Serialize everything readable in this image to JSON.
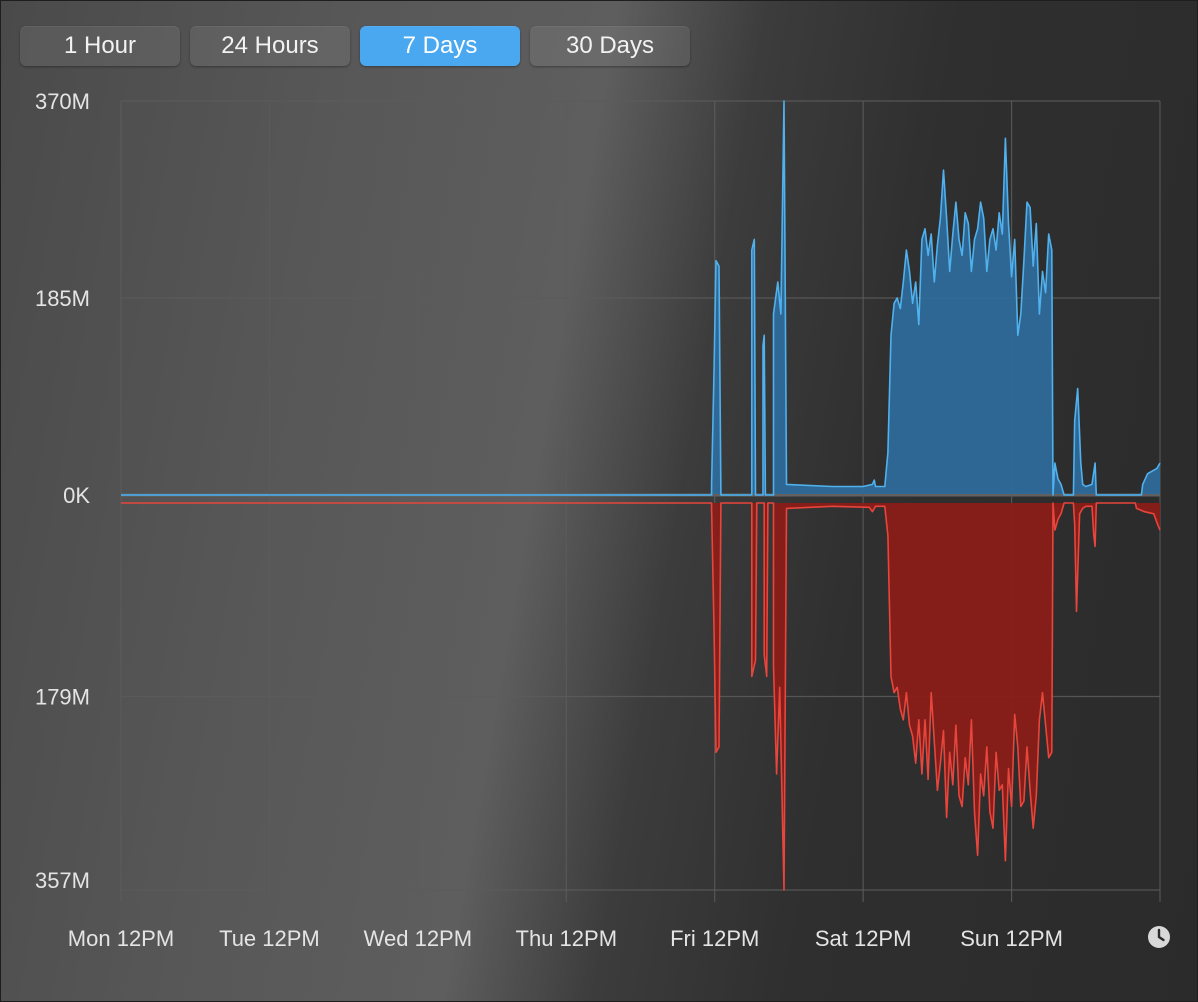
{
  "tabs": [
    {
      "label": "1 Hour",
      "active": false
    },
    {
      "label": "24 Hours",
      "active": false
    },
    {
      "label": "7 Days",
      "active": true
    },
    {
      "label": "30 Days",
      "active": false
    }
  ],
  "colors": {
    "upload": "#4fb1ee",
    "upload_fill": "#2e6a9a",
    "download": "#e8453c",
    "download_fill": "#8a1e18",
    "accent": "#4aa8f0"
  },
  "icons": {
    "time": "clock-icon"
  },
  "chart_data": {
    "type": "area",
    "xlabels": [
      "Mon 12PM",
      "Tue 12PM",
      "Wed 12PM",
      "Thu 12PM",
      "Fri 12PM",
      "Sat 12PM",
      "Sun 12PM"
    ],
    "x_range_hours": [
      0,
      168
    ],
    "upper_axis": {
      "ticks": [
        "370M",
        "185M",
        "0K"
      ],
      "max": 370
    },
    "lower_axis": {
      "ticks": [
        "179M",
        "357M"
      ],
      "max": 357
    },
    "grid": true,
    "series": [
      {
        "role": "upper",
        "points": [
          [
            0,
            0
          ],
          [
            95.5,
            0
          ],
          [
            95.5,
            10
          ],
          [
            95.9,
            120
          ],
          [
            96.2,
            220
          ],
          [
            96.7,
            215
          ],
          [
            97,
            0
          ],
          [
            102,
            0
          ],
          [
            102,
            230
          ],
          [
            102.4,
            240
          ],
          [
            102.6,
            0
          ],
          [
            103.8,
            0
          ],
          [
            103.8,
            140
          ],
          [
            104,
            150
          ],
          [
            104.2,
            0
          ],
          [
            105.5,
            0
          ],
          [
            105.5,
            170
          ],
          [
            106.2,
            200
          ],
          [
            106.7,
            170
          ],
          [
            107.2,
            370
          ],
          [
            107.6,
            10
          ],
          [
            115,
            8
          ],
          [
            120,
            8
          ],
          [
            121.5,
            10
          ],
          [
            121.8,
            14
          ],
          [
            122,
            8
          ],
          [
            123.5,
            8
          ],
          [
            124,
            40
          ],
          [
            124.5,
            150
          ],
          [
            125,
            180
          ],
          [
            125.5,
            185
          ],
          [
            126,
            175
          ],
          [
            126.5,
            200
          ],
          [
            127,
            230
          ],
          [
            127.5,
            210
          ],
          [
            128,
            180
          ],
          [
            128.5,
            200
          ],
          [
            129,
            160
          ],
          [
            129.5,
            240
          ],
          [
            130,
            250
          ],
          [
            130.5,
            225
          ],
          [
            131,
            245
          ],
          [
            131.5,
            200
          ],
          [
            132,
            235
          ],
          [
            132.5,
            260
          ],
          [
            133,
            305
          ],
          [
            133.5,
            260
          ],
          [
            134,
            210
          ],
          [
            134.5,
            245
          ],
          [
            135,
            275
          ],
          [
            135.5,
            240
          ],
          [
            136,
            225
          ],
          [
            136.5,
            265
          ],
          [
            137,
            255
          ],
          [
            137.5,
            210
          ],
          [
            138,
            240
          ],
          [
            138.5,
            250
          ],
          [
            139,
            275
          ],
          [
            139.5,
            260
          ],
          [
            140,
            210
          ],
          [
            140.5,
            240
          ],
          [
            141,
            250
          ],
          [
            141.5,
            230
          ],
          [
            142,
            265
          ],
          [
            142.5,
            245
          ],
          [
            143,
            335
          ],
          [
            143.5,
            255
          ],
          [
            144,
            205
          ],
          [
            144.5,
            240
          ],
          [
            145,
            150
          ],
          [
            145.5,
            170
          ],
          [
            146,
            220
          ],
          [
            146.5,
            275
          ],
          [
            147,
            270
          ],
          [
            147.5,
            215
          ],
          [
            148,
            255
          ],
          [
            148.5,
            170
          ],
          [
            149,
            210
          ],
          [
            149.5,
            190
          ],
          [
            150,
            245
          ],
          [
            150.5,
            230
          ],
          [
            150.7,
            0
          ],
          [
            151,
            30
          ],
          [
            151.5,
            15
          ],
          [
            152,
            10
          ],
          [
            152.5,
            0
          ],
          [
            154,
            0
          ],
          [
            154.2,
            70
          ],
          [
            154.7,
            100
          ],
          [
            155.2,
            30
          ],
          [
            155.5,
            10
          ],
          [
            156,
            8
          ],
          [
            157,
            10
          ],
          [
            157.5,
            30
          ],
          [
            157.7,
            0
          ],
          [
            165,
            0
          ],
          [
            165.2,
            10
          ],
          [
            166,
            20
          ],
          [
            167.5,
            25
          ],
          [
            168,
            30
          ]
        ]
      },
      {
        "role": "lower",
        "points": [
          [
            0,
            0
          ],
          [
            95.5,
            0
          ],
          [
            95.5,
            5
          ],
          [
            95.9,
            120
          ],
          [
            96.2,
            230
          ],
          [
            96.7,
            225
          ],
          [
            97,
            0
          ],
          [
            102,
            0
          ],
          [
            102,
            160
          ],
          [
            102.6,
            145
          ],
          [
            102.8,
            0
          ],
          [
            104,
            0
          ],
          [
            104,
            140
          ],
          [
            104.4,
            160
          ],
          [
            104.6,
            0
          ],
          [
            105.5,
            0
          ],
          [
            105.5,
            150
          ],
          [
            106,
            250
          ],
          [
            106.5,
            170
          ],
          [
            107.2,
            357
          ],
          [
            107.6,
            5
          ],
          [
            115,
            3
          ],
          [
            121,
            4
          ],
          [
            121.5,
            8
          ],
          [
            122,
            3
          ],
          [
            123.5,
            3
          ],
          [
            124,
            30
          ],
          [
            124.5,
            160
          ],
          [
            125,
            175
          ],
          [
            125.5,
            170
          ],
          [
            126,
            190
          ],
          [
            126.5,
            200
          ],
          [
            127,
            175
          ],
          [
            127.5,
            205
          ],
          [
            128,
            215
          ],
          [
            128.5,
            240
          ],
          [
            129,
            200
          ],
          [
            129.5,
            250
          ],
          [
            130,
            200
          ],
          [
            130.5,
            255
          ],
          [
            131,
            175
          ],
          [
            131.5,
            220
          ],
          [
            132,
            265
          ],
          [
            132.5,
            240
          ],
          [
            133,
            210
          ],
          [
            133.5,
            290
          ],
          [
            134,
            230
          ],
          [
            134.5,
            260
          ],
          [
            135,
            205
          ],
          [
            135.5,
            270
          ],
          [
            136,
            280
          ],
          [
            136.5,
            235
          ],
          [
            137,
            260
          ],
          [
            137.5,
            200
          ],
          [
            138,
            285
          ],
          [
            138.5,
            325
          ],
          [
            139,
            250
          ],
          [
            139.5,
            270
          ],
          [
            140,
            225
          ],
          [
            140.5,
            285
          ],
          [
            141,
            300
          ],
          [
            141.5,
            230
          ],
          [
            142,
            265
          ],
          [
            142.5,
            260
          ],
          [
            143,
            330
          ],
          [
            143.5,
            245
          ],
          [
            144,
            280
          ],
          [
            144.5,
            195
          ],
          [
            145,
            225
          ],
          [
            145.5,
            280
          ],
          [
            146,
            275
          ],
          [
            146.5,
            225
          ],
          [
            147,
            265
          ],
          [
            147.5,
            300
          ],
          [
            148,
            270
          ],
          [
            148.5,
            200
          ],
          [
            149,
            175
          ],
          [
            149.5,
            205
          ],
          [
            150,
            235
          ],
          [
            150.5,
            230
          ],
          [
            150.7,
            0
          ],
          [
            151,
            25
          ],
          [
            151.5,
            15
          ],
          [
            152,
            10
          ],
          [
            152.5,
            0
          ],
          [
            154,
            0
          ],
          [
            154.2,
            20
          ],
          [
            154.5,
            100
          ],
          [
            155,
            10
          ],
          [
            155.5,
            5
          ],
          [
            156,
            3
          ],
          [
            157,
            3
          ],
          [
            157.3,
            30
          ],
          [
            157.5,
            40
          ],
          [
            157.7,
            0
          ],
          [
            164,
            0
          ],
          [
            164.2,
            5
          ],
          [
            165.5,
            8
          ],
          [
            167,
            10
          ],
          [
            167.5,
            18
          ],
          [
            168,
            25
          ]
        ]
      }
    ]
  }
}
